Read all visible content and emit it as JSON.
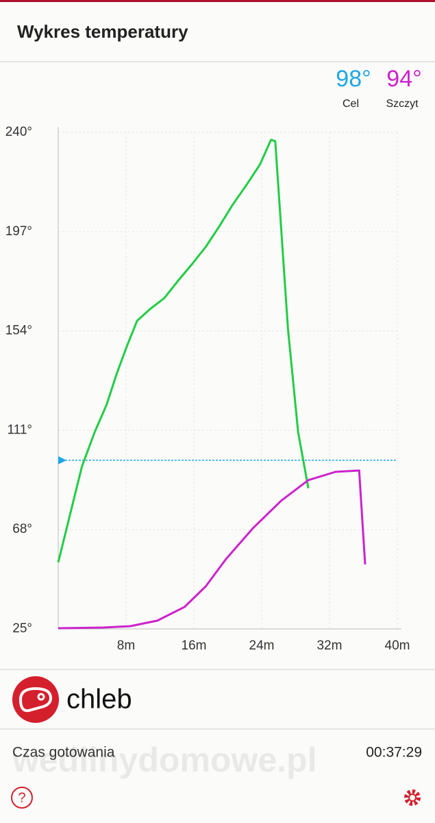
{
  "header": {
    "title": "Wykres temperatury"
  },
  "readouts": [
    {
      "label": "98°",
      "name": "Cel",
      "color": "#1ea7e6"
    },
    {
      "label": "94°",
      "name": "Szczyt",
      "color": "#cc22cc"
    }
  ],
  "chart_data": {
    "type": "line",
    "xlim": [
      0,
      40
    ],
    "xticks": [
      {
        "value": 8,
        "label": "8m"
      },
      {
        "value": 16,
        "label": "16m"
      },
      {
        "value": 24,
        "label": "24m"
      },
      {
        "value": 32,
        "label": "32m"
      },
      {
        "value": 40,
        "label": "40m"
      }
    ],
    "ylim": [
      25,
      240
    ],
    "yticks": [
      {
        "value": 25,
        "label": "25°"
      },
      {
        "value": 68,
        "label": "68°"
      },
      {
        "value": 111,
        "label": "111°"
      },
      {
        "value": 154,
        "label": "154°"
      },
      {
        "value": 197,
        "label": "197°"
      },
      {
        "value": 240,
        "label": "240°"
      }
    ],
    "grid": true,
    "target": 98,
    "target_color": "#1ea7e6",
    "series": [
      {
        "color": "#22cc44",
        "x": [
          0,
          1.6,
          2.8,
          4.3,
          5.7,
          6.9,
          8.1,
          9.3,
          10.9,
          12.5,
          14.1,
          15.8,
          17.4,
          19.0,
          20.6,
          22.2,
          23.8,
          25.1,
          25.6,
          27.1,
          28.3,
          29.5
        ],
        "values": [
          53.8,
          77.6,
          95.4,
          110.2,
          122,
          135.5,
          147.4,
          158.4,
          163.7,
          168.2,
          175.6,
          183,
          190.4,
          199.3,
          208.8,
          217.2,
          226.1,
          236.8,
          236.2,
          154.8,
          110.2,
          85.9
        ]
      },
      {
        "color": "#cc22cc",
        "x": [
          0,
          5.3,
          8.5,
          11.7,
          14.9,
          17.4,
          19.8,
          23.0,
          26.3,
          29.5,
          32.7,
          35.5,
          36.2
        ],
        "values": [
          25.3,
          25.6,
          26.2,
          28.6,
          34.5,
          43.4,
          55.3,
          68.7,
          80.5,
          89.4,
          93,
          93.6,
          52.9
        ]
      }
    ]
  },
  "item": {
    "name": "chleb"
  },
  "info": {
    "label": "Czas gotowania",
    "value": "00:37:29"
  },
  "watermark": "wedlinydomowe.pl"
}
